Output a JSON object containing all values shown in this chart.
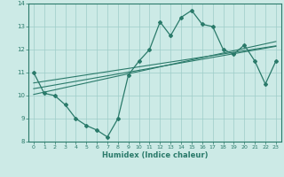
{
  "title": "",
  "xlabel": "Humidex (Indice chaleur)",
  "x_data": [
    0,
    1,
    2,
    3,
    4,
    5,
    6,
    7,
    8,
    9,
    10,
    11,
    12,
    13,
    14,
    15,
    16,
    17,
    18,
    19,
    20,
    21,
    22,
    23
  ],
  "y_main": [
    11.0,
    10.1,
    10.0,
    9.6,
    9.0,
    8.7,
    8.5,
    8.2,
    9.0,
    10.9,
    11.5,
    12.0,
    13.2,
    12.6,
    13.4,
    13.7,
    13.1,
    13.0,
    12.0,
    11.8,
    12.2,
    11.5,
    10.5,
    11.5
  ],
  "y_line1": [
    10.05,
    10.15,
    10.25,
    10.35,
    10.45,
    10.55,
    10.65,
    10.75,
    10.85,
    10.95,
    11.05,
    11.15,
    11.25,
    11.35,
    11.45,
    11.55,
    11.65,
    11.75,
    11.85,
    11.95,
    12.05,
    12.15,
    12.25,
    12.35
  ],
  "y_line2": [
    10.3,
    10.38,
    10.46,
    10.54,
    10.62,
    10.7,
    10.78,
    10.86,
    10.94,
    11.02,
    11.1,
    11.18,
    11.26,
    11.34,
    11.42,
    11.5,
    11.58,
    11.66,
    11.74,
    11.82,
    11.9,
    11.98,
    12.06,
    12.14
  ],
  "y_line3": [
    10.55,
    10.62,
    10.69,
    10.76,
    10.83,
    10.9,
    10.97,
    11.04,
    11.11,
    11.18,
    11.25,
    11.32,
    11.39,
    11.46,
    11.53,
    11.6,
    11.67,
    11.74,
    11.81,
    11.88,
    11.95,
    12.02,
    12.09,
    12.16
  ],
  "line_color": "#2a7a6a",
  "bg_color": "#cceae6",
  "grid_color": "#9dcdc8",
  "ylim": [
    8,
    14
  ],
  "xlim": [
    -0.5,
    23.5
  ],
  "yticks": [
    8,
    9,
    10,
    11,
    12,
    13,
    14
  ],
  "xticks": [
    0,
    1,
    2,
    3,
    4,
    5,
    6,
    7,
    8,
    9,
    10,
    11,
    12,
    13,
    14,
    15,
    16,
    17,
    18,
    19,
    20,
    21,
    22,
    23
  ]
}
